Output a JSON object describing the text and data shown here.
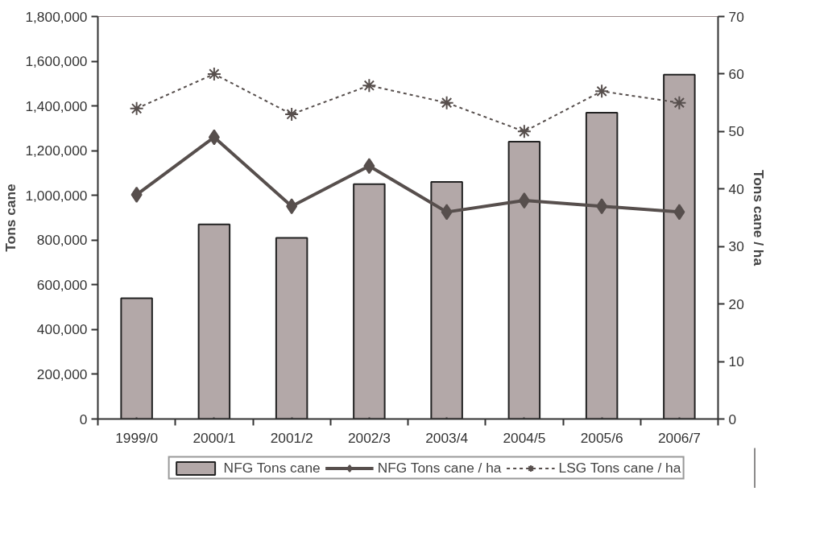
{
  "chart_data": {
    "type": "bar",
    "ylabel": "Tons cane",
    "y2label": "Tons cane / ha",
    "categories": [
      "1999/0",
      "2000/1",
      "2001/2",
      "2002/3",
      "2003/4",
      "2004/5",
      "2005/6",
      "2006/7"
    ],
    "series": [
      {
        "name": "NFG Tons cane",
        "color": "#b3a8a8",
        "values": [
          540000,
          870000,
          810000,
          1050000,
          1060000,
          1240000,
          1370000,
          1540000
        ]
      },
      {
        "name": "NFG Tons cane / ha",
        "type": "line",
        "axis": "y2",
        "color": "#574f4d",
        "marker": "diamond",
        "line_style": "solid",
        "values": [
          39,
          49,
          37,
          44,
          36,
          38,
          37,
          36
        ]
      },
      {
        "name": "LSG Tons cane / ha",
        "type": "line",
        "axis": "y2",
        "color": "#574f4d",
        "marker": "cross",
        "line_style": "dashed",
        "values": [
          54,
          60,
          53,
          58,
          55,
          50,
          57,
          55
        ]
      }
    ],
    "ylim": [
      0,
      1800000
    ],
    "yticks": [
      {
        "value": 0,
        "label": "0"
      },
      {
        "value": 200000,
        "label": "200,000"
      },
      {
        "value": 400000,
        "label": "400,000"
      },
      {
        "value": 600000,
        "label": "600,000"
      },
      {
        "value": 800000,
        "label": "800,000"
      },
      {
        "value": 1000000,
        "label": "1,000,000"
      },
      {
        "value": 1200000,
        "label": "1,200,000"
      },
      {
        "value": 1400000,
        "label": "1,400,000"
      },
      {
        "value": 1600000,
        "label": "1,600,000"
      },
      {
        "value": 1800000,
        "label": "1,800,000"
      }
    ],
    "y2lim": [
      0,
      70
    ],
    "y2ticks": [
      0,
      10,
      20,
      30,
      40,
      50,
      60,
      70
    ],
    "grid": false,
    "legend": "bottom"
  }
}
